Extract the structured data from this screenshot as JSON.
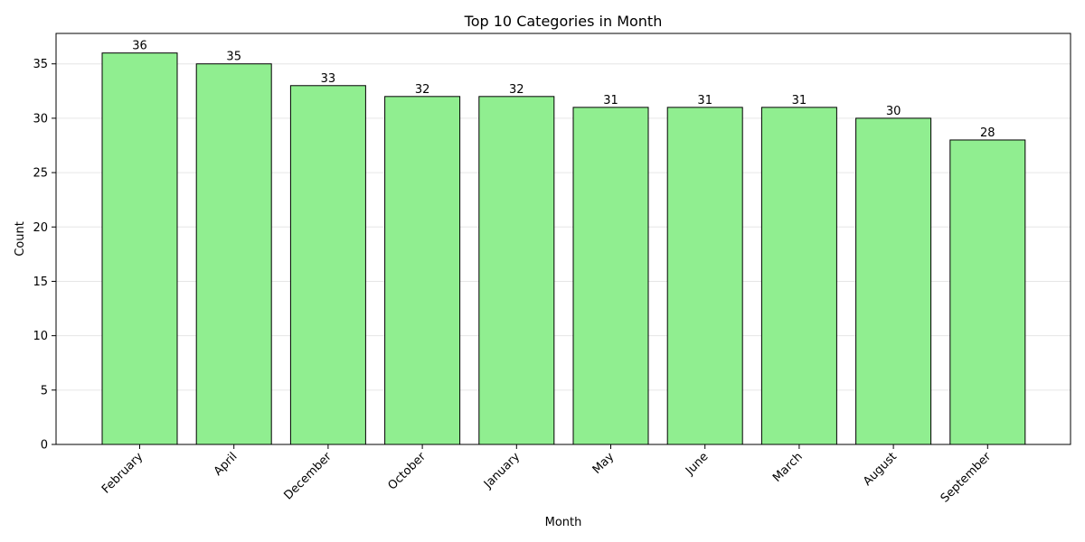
{
  "chart_data": {
    "type": "bar",
    "title": "Top 10 Categories in Month",
    "xlabel": "Month",
    "ylabel": "Count",
    "categories": [
      "February",
      "April",
      "December",
      "October",
      "January",
      "May",
      "June",
      "March",
      "August",
      "September"
    ],
    "values": [
      36,
      35,
      33,
      32,
      32,
      31,
      31,
      31,
      30,
      28
    ],
    "ylim": [
      0,
      37.8
    ],
    "yticks": [
      0,
      5,
      10,
      15,
      20,
      25,
      30,
      35
    ],
    "grid": "y",
    "legend": "none",
    "bar_color": "#90ee90",
    "bar_edge_color": "#000000"
  }
}
